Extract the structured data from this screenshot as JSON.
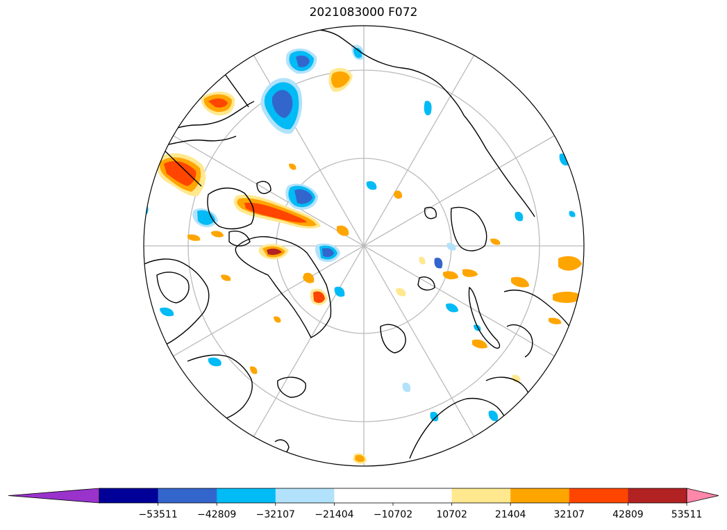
{
  "title": "2021083000 F072",
  "colorbar": {
    "extend_low_color": "#9933cc",
    "extend_high_color": "#ff88aa",
    "colors": [
      "#000099",
      "#3366cc",
      "#00bbf5",
      "#b2e2fb",
      "#ffffff",
      "#ffffff",
      "#ffe88e",
      "#ffa500",
      "#ff4500",
      "#b22222"
    ],
    "ticks": [
      -53511,
      -42809,
      -32107,
      -21404,
      -10702,
      10702,
      21404,
      32107,
      42809,
      53511
    ],
    "tick_labels": [
      "−53511",
      "−42809",
      "−32107",
      "−21404",
      "−10702",
      "10702",
      "21404",
      "32107",
      "42809",
      "53511"
    ]
  },
  "map": {
    "projection": "north-polar-stereographic",
    "graticule_color": "#bbbbbb",
    "coastline_color": "#000000",
    "anomaly_blobs": [
      {
        "name": "canada-west-positive",
        "level": 42809
      },
      {
        "name": "canada-arctic-positive",
        "level": 42809
      },
      {
        "name": "alaska-positive",
        "level": 42809
      },
      {
        "name": "bering-negative",
        "level": -32107
      },
      {
        "name": "chukchi-negative",
        "level": -32107
      },
      {
        "name": "central-arctic-negative",
        "level": -42809
      },
      {
        "name": "canada-central-negative",
        "level": -32107
      },
      {
        "name": "greenland-positive",
        "level": 42809
      },
      {
        "name": "greenland-negative",
        "level": -42809
      },
      {
        "name": "siberia-positive",
        "level": 32107
      },
      {
        "name": "kara-negative",
        "level": -32107
      }
    ]
  }
}
